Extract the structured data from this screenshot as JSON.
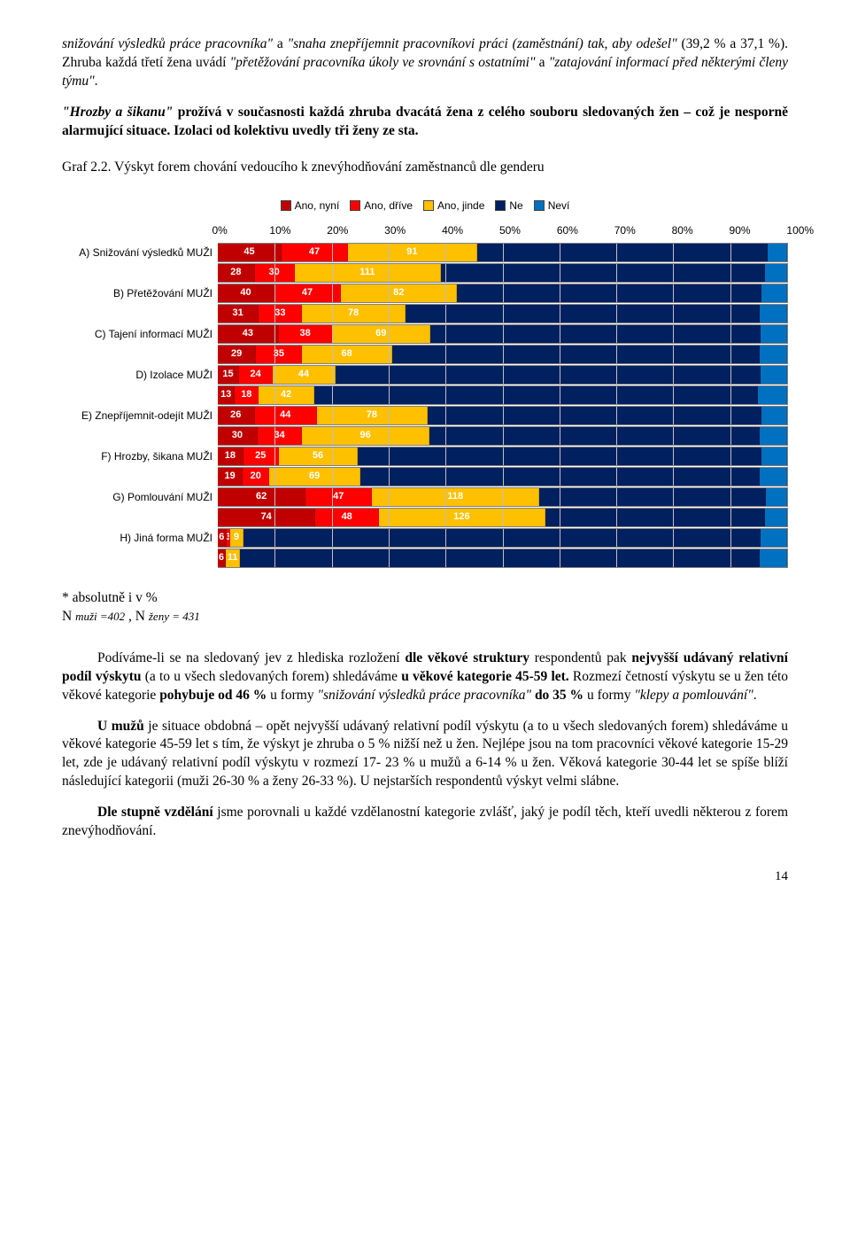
{
  "para1": {
    "run1": "snižování výsledků práce pracovníka\"",
    "run2": " a ",
    "run3": "\"snaha znepříjemnit pracovníkovi práci (zaměstnání) tak, aby odešel\"",
    "run4": " (39,2 % a 37,1 %). Zhruba každá třetí žena uvádí ",
    "run5": "\"přetěžování pracovníka úkoly ve srovnání s ostatními\"",
    "run6": " a ",
    "run7": "\"zatajování informací před některými členy týmu\"",
    "run8": "."
  },
  "para2": {
    "run1": "\"Hrozby a šikanu\"",
    "run2": " prožívá v současnosti každá zhruba dvacátá žena z celého souboru sledovaných žen – což je nesporně alarmující situace. Izolaci od kolektivu uvedly tři ženy ze sta."
  },
  "chartTitle": "Graf 2.2. Výskyt forem chování vedoucího k znevýhodňování zaměstnanců dle genderu",
  "legend": {
    "items": [
      "Ano, nyní",
      "Ano, dříve",
      "Ano, jinde",
      "Ne",
      "Neví"
    ],
    "colors": [
      "#c00000",
      "#ff0000",
      "#ffc000",
      "#002060",
      "#0070c0"
    ]
  },
  "axis": {
    "ticks": [
      "0%",
      "10%",
      "20%",
      "30%",
      "40%",
      "50%",
      "60%",
      "70%",
      "80%",
      "90%",
      "100%"
    ]
  },
  "chart": {
    "bar_colors": [
      "#c00000",
      "#ff0000",
      "#ffc000",
      "#002060",
      "#0070c0"
    ],
    "rows": [
      {
        "label": "A) Snižování výsledků MUŽI",
        "segs": [
          45,
          47,
          91,
          205,
          14
        ]
      },
      {
        "label": "",
        "segs": [
          28,
          30,
          111,
          245,
          17
        ]
      },
      {
        "label": "B) Přetěžování MUŽI",
        "segs": [
          40,
          47,
          82,
          215,
          18
        ]
      },
      {
        "label": "",
        "segs": [
          31,
          33,
          78,
          268,
          21
        ]
      },
      {
        "label": "C) Tajení informací MUŽI",
        "segs": [
          43,
          38,
          69,
          233,
          19
        ]
      },
      {
        "label": "",
        "segs": [
          29,
          35,
          68,
          278,
          21
        ]
      },
      {
        "label": "D) Izolace MUŽI",
        "segs": [
          15,
          24,
          44,
          300,
          19
        ]
      },
      {
        "label": "",
        "segs": [
          13,
          18,
          42,
          336,
          22
        ]
      },
      {
        "label": "E) Znepříjemnit-odejít MUŽI",
        "segs": [
          26,
          44,
          78,
          236,
          18
        ]
      },
      {
        "label": "",
        "segs": [
          30,
          34,
          96,
          250,
          21
        ]
      },
      {
        "label": "F) Hrozby, šikana MUŽI",
        "segs": [
          18,
          25,
          56,
          285,
          18
        ]
      },
      {
        "label": "",
        "segs": [
          19,
          20,
          69,
          302,
          21
        ]
      },
      {
        "label": "G) Pomlouvání  MUŽI",
        "segs": [
          62,
          47,
          118,
          160,
          15
        ]
      },
      {
        "label": "",
        "segs": [
          74,
          48,
          126,
          166,
          17
        ]
      },
      {
        "label": "H) Jiná forma   MUŽI",
        "segs": [
          6,
          3,
          9,
          365,
          19
        ]
      },
      {
        "label": "",
        "segs": [
          6,
          0,
          11,
          393,
          21
        ]
      }
    ]
  },
  "footnote": {
    "line1": "* absolutně i v %",
    "line2_a": "N ",
    "line2_b": "muži =402",
    "line2_c": " , N ",
    "line2_d": "ženy  = 431"
  },
  "para3": {
    "run1": "Podíváme-li se na sledovaný jev z hlediska rozložení ",
    "run2": "dle věkové struktury",
    "run3": " respondentů pak ",
    "run4": "nejvyšší udávaný relativní podíl výskytu",
    "run5": " (a to u všech sledovaných forem) shledáváme ",
    "run6": "u věkové kategorie 45-59 let.",
    "run7": " Rozmezí četností výskytu se u žen této věkové kategorie ",
    "run8": "pohybuje od 46 %",
    "run9": " u formy ",
    "run10": "\"snižování výsledků práce pracovníka\"",
    "run11": " ",
    "run12": "do 35 %",
    "run13": " u formy ",
    "run14": "\"klepy a pomlouvání\"",
    "run15": "."
  },
  "para4": {
    "run1": "U mužů",
    "run2": " je situace obdobná – opět nejvyšší udávaný relativní podíl výskytu (a to u všech sledovaných forem) shledáváme u věkové kategorie 45-59 let s tím, že výskyt je zhruba o 5 % nižší než u žen. Nejlépe jsou na tom pracovníci věkové kategorie 15-29 let, zde je udávaný relativní podíl výskytu v rozmezí 17- 23 % u mužů a 6-14 % u žen. Věková kategorie 30-44 let se spíše blíží následující kategorii (muži 26-30 % a ženy 26-33 %). U nejstarších respondentů výskyt velmi slábne."
  },
  "para5": {
    "run1": "Dle stupně vzdělání",
    "run2": " jsme porovnali u každé vzdělanostní kategorie zvlášť, jaký je podíl těch, kteří uvedli některou z forem znevýhodňování."
  },
  "pageNum": "14"
}
